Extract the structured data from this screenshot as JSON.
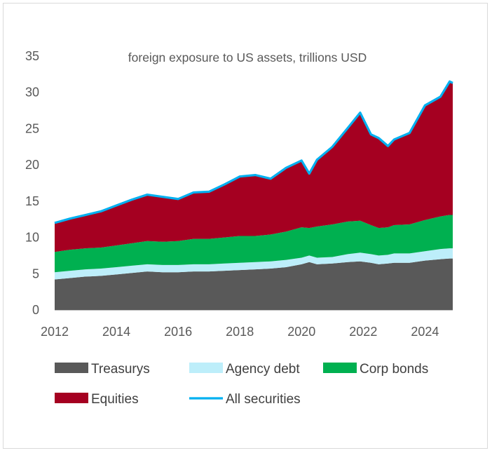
{
  "chart_data": {
    "type": "area",
    "title": "foreign exposure to US assets, trillions USD",
    "xlabel": "",
    "ylabel": "",
    "stacked": true,
    "xlim": [
      2012.0,
      2024.9
    ],
    "ylim": [
      0,
      35
    ],
    "x_ticks": [
      "2012",
      "2014",
      "2016",
      "2018",
      "2020",
      "2022",
      "2024"
    ],
    "y_ticks": [
      "0",
      "5",
      "10",
      "15",
      "20",
      "25",
      "30",
      "35"
    ],
    "grid": false,
    "legend_position": "bottom",
    "x": [
      2012.0,
      2012.5,
      2013.0,
      2013.5,
      2014.0,
      2014.5,
      2015.0,
      2015.5,
      2016.0,
      2016.5,
      2017.0,
      2017.5,
      2018.0,
      2018.5,
      2019.0,
      2019.5,
      2020.0,
      2020.25,
      2020.5,
      2021.0,
      2021.5,
      2021.9,
      2022.25,
      2022.5,
      2022.8,
      2023.0,
      2023.5,
      2024.0,
      2024.5,
      2024.8,
      2024.9
    ],
    "series": [
      {
        "name": "Treasurys",
        "color": "#595959",
        "values": [
          4.2,
          4.4,
          4.6,
          4.7,
          4.9,
          5.1,
          5.3,
          5.2,
          5.2,
          5.3,
          5.3,
          5.4,
          5.5,
          5.6,
          5.7,
          5.9,
          6.3,
          6.6,
          6.3,
          6.4,
          6.6,
          6.7,
          6.5,
          6.3,
          6.4,
          6.5,
          6.5,
          6.8,
          7.0,
          7.1,
          7.1
        ]
      },
      {
        "name": "Agency debt",
        "color": "#bdeefa",
        "values": [
          1.0,
          1.0,
          1.0,
          1.0,
          1.0,
          1.0,
          1.0,
          1.0,
          1.0,
          1.0,
          1.0,
          1.0,
          1.0,
          1.0,
          1.0,
          1.0,
          0.9,
          0.9,
          0.9,
          0.9,
          1.1,
          1.2,
          1.2,
          1.2,
          1.2,
          1.3,
          1.3,
          1.3,
          1.4,
          1.4,
          1.4
        ]
      },
      {
        "name": "Corp bonds",
        "color": "#00b050",
        "values": [
          2.8,
          2.9,
          2.9,
          2.9,
          3.0,
          3.1,
          3.2,
          3.2,
          3.3,
          3.5,
          3.5,
          3.6,
          3.7,
          3.6,
          3.7,
          3.9,
          4.2,
          3.8,
          4.3,
          4.5,
          4.5,
          4.4,
          4.0,
          3.8,
          3.8,
          3.9,
          4.0,
          4.3,
          4.5,
          4.6,
          4.6
        ]
      },
      {
        "name": "Equities",
        "color": "#a50021",
        "values": [
          4.0,
          4.3,
          4.6,
          5.0,
          5.5,
          6.0,
          6.4,
          6.2,
          5.8,
          6.4,
          6.5,
          7.3,
          8.2,
          8.4,
          7.7,
          8.8,
          9.2,
          7.5,
          9.2,
          10.7,
          12.9,
          14.9,
          12.5,
          12.4,
          11.2,
          11.8,
          12.6,
          15.8,
          16.5,
          18.4,
          18.2
        ]
      }
    ],
    "total_line": {
      "name": "All securities",
      "color": "#00b0f0",
      "values": [
        12.0,
        12.6,
        13.1,
        13.6,
        14.4,
        15.2,
        15.9,
        15.6,
        15.3,
        16.2,
        16.3,
        17.3,
        18.4,
        18.6,
        18.1,
        19.6,
        20.6,
        18.8,
        20.7,
        22.5,
        25.1,
        27.2,
        24.2,
        23.7,
        22.6,
        23.5,
        24.4,
        28.2,
        29.4,
        31.5,
        31.3
      ]
    }
  }
}
